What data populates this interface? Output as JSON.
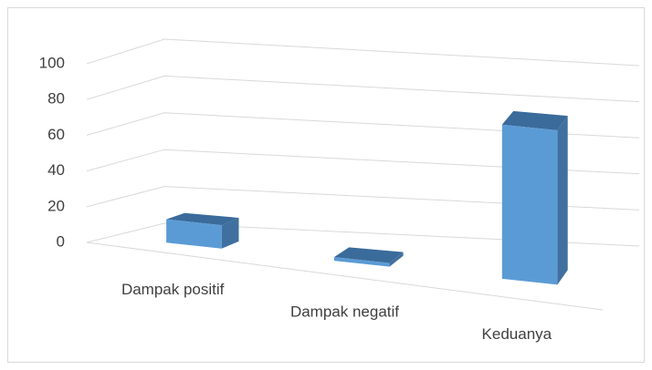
{
  "chart_data": {
    "type": "bar3d",
    "categories": [
      "Dampak positif",
      "Dampak negatif",
      "Keduanya"
    ],
    "values": [
      13,
      2,
      85
    ],
    "color": "#5b9bd5",
    "ylim": [
      0,
      100
    ],
    "yticks": [
      0,
      20,
      40,
      60,
      80,
      100
    ],
    "grid": true
  }
}
